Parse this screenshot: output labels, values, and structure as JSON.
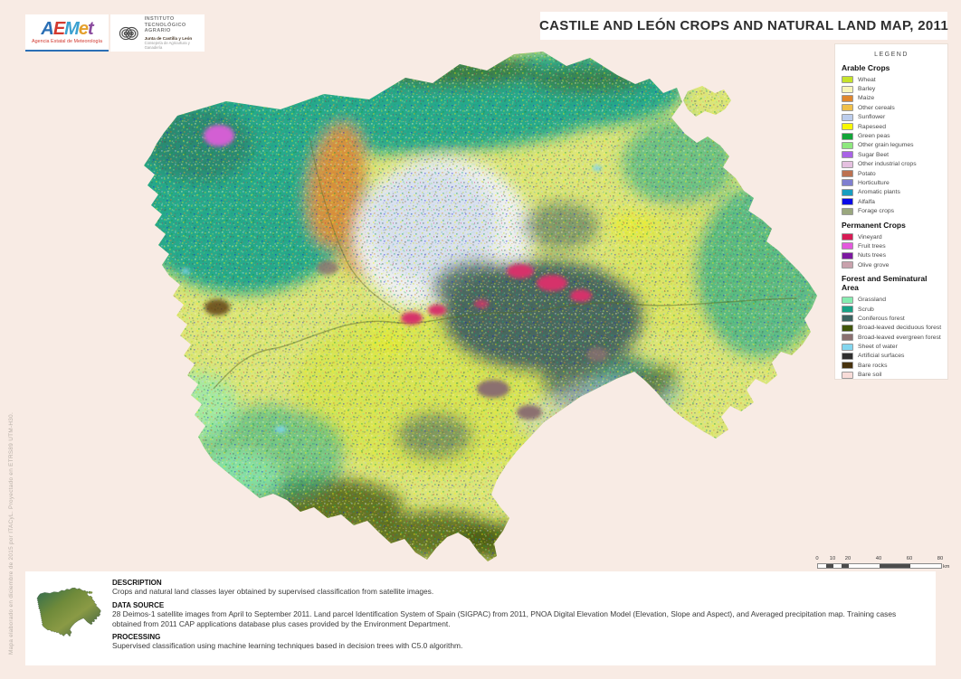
{
  "page": {
    "background": "#f8ebe4"
  },
  "header": {
    "title": "CASTILE AND LEÓN CROPS AND NATURAL LAND MAP, 2011"
  },
  "logos": {
    "aemet": {
      "letters": [
        {
          "ch": "A",
          "color": "#2b6fb5"
        },
        {
          "ch": "E",
          "color": "#d23a30"
        },
        {
          "ch": "M",
          "color": "#3aa0d0"
        },
        {
          "ch": "e",
          "color": "#e4a02c"
        },
        {
          "ch": "t",
          "color": "#8a4a9e"
        }
      ],
      "subtitle": "Agencia Estatal de Meteorología"
    },
    "ita": {
      "org_lines": [
        "INSTITUTO",
        "TECNOLÓGICO",
        "AGRARIO"
      ],
      "sub1": "Junta de Castilla y León",
      "sub2": "Consejería de Agricultura y Ganadería"
    }
  },
  "legend": {
    "title": "LEGEND",
    "sections": [
      {
        "title": "Arable Crops",
        "items": [
          {
            "label": "Wheat",
            "color": "#c6e32b"
          },
          {
            "label": "Barley",
            "color": "#f7f5b8"
          },
          {
            "label": "Maize",
            "color": "#e0872e"
          },
          {
            "label": "Other cereals",
            "color": "#f0c04a"
          },
          {
            "label": "Sunflower",
            "color": "#bccdec"
          },
          {
            "label": "Rapeseed",
            "color": "#f8f800"
          },
          {
            "label": "Green peas",
            "color": "#12a539"
          },
          {
            "label": "Other grain legumes",
            "color": "#8ee87e"
          },
          {
            "label": "Sugar Beet",
            "color": "#a963e6"
          },
          {
            "label": "Other industrial crops",
            "color": "#e5c0e0"
          },
          {
            "label": "Potato",
            "color": "#bc7150"
          },
          {
            "label": "Horticulture",
            "color": "#7f7fd0"
          },
          {
            "label": "Aromatic plants",
            "color": "#189ec0"
          },
          {
            "label": "Alfalfa",
            "color": "#0a0ae8"
          },
          {
            "label": "Forage crops",
            "color": "#9aa77e"
          }
        ]
      },
      {
        "title": "Permanent Crops",
        "items": [
          {
            "label": "Vineyard",
            "color": "#d81b55"
          },
          {
            "label": "Fruit trees",
            "color": "#e359dd"
          },
          {
            "label": "Nuts trees",
            "color": "#7c18a0"
          },
          {
            "label": "Olive grove",
            "color": "#c9a2ad"
          }
        ]
      },
      {
        "title": "Forest and Seminatural Area",
        "items": [
          {
            "label": "Grassland",
            "color": "#86ecb1"
          },
          {
            "label": "Scrub",
            "color": "#17a184"
          },
          {
            "label": "Coniferous forest",
            "color": "#3c6360"
          },
          {
            "label": "Broad-leaved deciduous forest",
            "color": "#41560b"
          },
          {
            "label": "Broad-leaved evergreen forest",
            "color": "#8b7070"
          },
          {
            "label": "Sheet of water",
            "color": "#83d6ef"
          },
          {
            "label": "Artificial surfaces",
            "color": "#2f2f2f"
          },
          {
            "label": "Bare rocks",
            "color": "#47320d"
          },
          {
            "label": "Bare soil",
            "color": "#f8dcd8"
          }
        ]
      }
    ]
  },
  "scalebar": {
    "tick_labels": [
      "0",
      "10",
      "20",
      "40",
      "60",
      "80"
    ],
    "unit": "km",
    "total_km": 80,
    "dark_segments_km": [
      [
        5,
        10
      ],
      [
        15,
        20
      ],
      [
        40,
        60
      ]
    ]
  },
  "side_note": "Mapa elaborado en diciembre de 2015 por ITACyL.  Proyectado en ETRS89 UTM-H30.",
  "footer": {
    "sections": [
      {
        "heading": "DESCRIPTION",
        "body": "Crops and natural land classes layer obtained by supervised classification from satellite images."
      },
      {
        "heading": "DATA SOURCE",
        "body": "28 Deimos-1 satellite images from April to September 2011. Land parcel Identification System of Spain (SIGPAC) from 2011, PNOA Digital Elevation Model (Elevation, Slope and Aspect), and Averaged precipitation map. Training cases obtained from 2011 CAP applications database plus cases provided by the Environment Department."
      },
      {
        "heading": "PROCESSING",
        "body": "Supervised classification using machine learning techniques based in decision trees with C5.0 algorithm."
      }
    ]
  }
}
